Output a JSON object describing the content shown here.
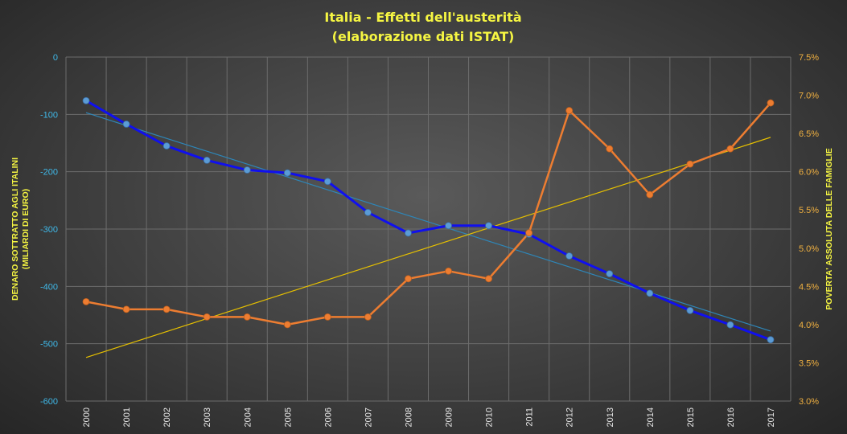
{
  "chart_data": {
    "type": "line",
    "title": [
      "Italia - Effetti dell'austerità",
      "(elaborazione dati ISTAT)"
    ],
    "x": [
      "2000",
      "2001",
      "2002",
      "2003",
      "2004",
      "2005",
      "2006",
      "2007",
      "2008",
      "2009",
      "2010",
      "2011",
      "2012",
      "2013",
      "2014",
      "2015",
      "2016",
      "2017"
    ],
    "ylabel_left": [
      "DENARO SOTTRATTO AGLI ITALINI",
      "(MILIARDI DI EURO)"
    ],
    "ylabel_right": "POVERTA' ASSOLUTA DELLE FAMIGLIE",
    "ylim_left": [
      -600,
      0
    ],
    "ylim_right": [
      3.0,
      7.5
    ],
    "yticks_left": [
      "0",
      "-100",
      "-200",
      "-300",
      "-400",
      "-500",
      "-600"
    ],
    "yticks_right": [
      "7.5%",
      "7.0%",
      "6.5%",
      "6.0%",
      "5.5%",
      "5.0%",
      "4.5%",
      "4.0%",
      "3.5%",
      "3.0%"
    ],
    "grid": true,
    "series": [
      {
        "axis": "left",
        "color": "#1010ee",
        "marker_color": "#5b9bd5",
        "values": [
          -76,
          -117,
          -155,
          -180,
          -197,
          -202,
          -217,
          -271,
          -307,
          -294,
          -294,
          -309,
          -347,
          -378,
          -412,
          -442,
          -467,
          -493
        ]
      },
      {
        "axis": "right",
        "color": "#ed7d31",
        "values": [
          4.3,
          4.2,
          4.2,
          4.1,
          4.1,
          4.0,
          4.1,
          4.1,
          4.6,
          4.7,
          4.6,
          5.2,
          6.8,
          6.3,
          5.7,
          6.1,
          6.3,
          6.9
        ]
      }
    ],
    "trendlines": [
      {
        "axis": "left",
        "color": "#2e86b8",
        "values_at_ends": [
          -97,
          -478
        ]
      },
      {
        "axis": "right",
        "color": "#e6c000",
        "values_at_ends": [
          3.57,
          6.45
        ]
      }
    ]
  }
}
